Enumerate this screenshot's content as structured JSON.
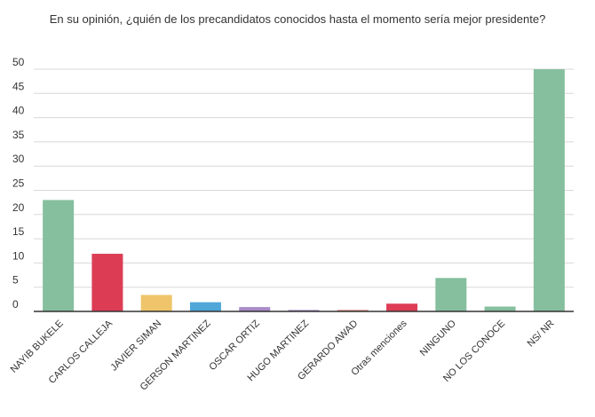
{
  "chart_data": {
    "type": "bar",
    "title": "En su opinión, ¿quién de los precandidatos conocidos hasta el momento sería mejor presidente?",
    "categories": [
      "NAYIB BUKELE",
      "CARLOS CALLEJA",
      "JAVIER SIMAN",
      "GERSON MARTINEZ",
      "OSCAR ORTIZ",
      "HUGO MARTINEZ",
      "GERARDO AWAD",
      "Otras menciones",
      "NINGUNO",
      "NO LOS CONOCE",
      "NS/ NR"
    ],
    "values": [
      23,
      11.9,
      3.4,
      1.9,
      0.9,
      0.3,
      0.3,
      1.6,
      6.9,
      1.0,
      50
    ],
    "colors": [
      "#86bf9e",
      "#dc3d55",
      "#eec56a",
      "#4fa6d9",
      "#a98bc7",
      "#9b87c2",
      "#d27e6d",
      "#dc3d55",
      "#86bf9e",
      "#86bf9e",
      "#86bf9e"
    ],
    "yticks": [
      0,
      5,
      10,
      15,
      20,
      25,
      30,
      35,
      40,
      45,
      50
    ],
    "ylim": [
      0,
      50
    ],
    "grid": true,
    "xlabel": "",
    "ylabel": ""
  }
}
